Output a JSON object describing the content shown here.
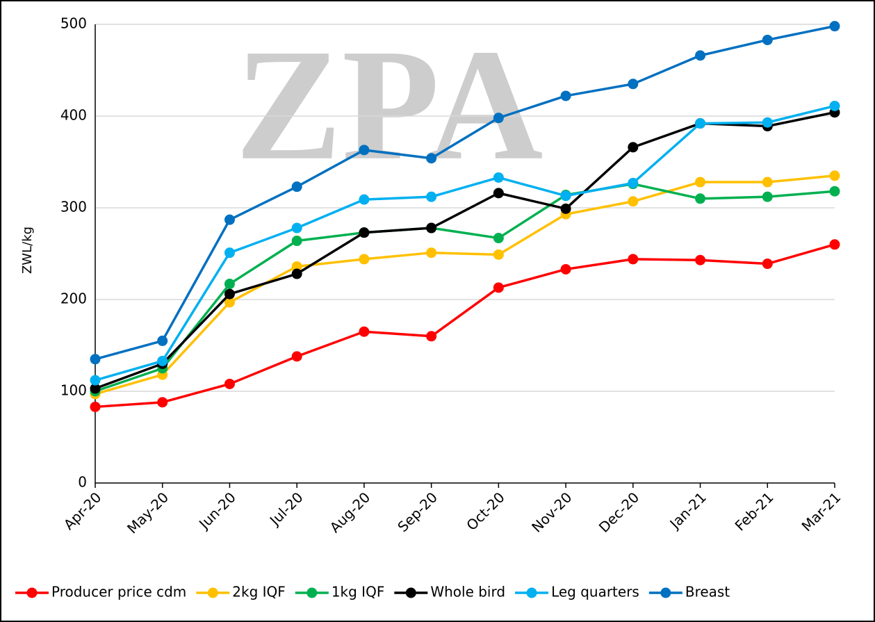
{
  "chart_data": {
    "type": "line",
    "watermark": "ZPA",
    "y_label": "ZWL/kg",
    "categories": [
      "Apr-20",
      "May-20",
      "Jun-20",
      "Jul-20",
      "Aug-20",
      "Sep-20",
      "Oct-20",
      "Nov-20",
      "Dec-20",
      "Jan-21",
      "Feb-21",
      "Mar-21"
    ],
    "series": [
      {
        "name": "Producer price cdm",
        "color": "#ff0000",
        "values": [
          83,
          88,
          108,
          138,
          165,
          160,
          213,
          233,
          244,
          243,
          239,
          260
        ]
      },
      {
        "name": "2kg IQF",
        "color": "#ffc000",
        "values": [
          97,
          118,
          197,
          236,
          244,
          251,
          249,
          293,
          307,
          328,
          328,
          335
        ]
      },
      {
        "name": "1kg IQF",
        "color": "#00b050",
        "values": [
          100,
          125,
          217,
          264,
          273,
          278,
          267,
          314,
          326,
          310,
          312,
          318
        ]
      },
      {
        "name": "Whole bird",
        "color": "#000000",
        "values": [
          103,
          130,
          206,
          228,
          273,
          278,
          316,
          299,
          366,
          392,
          389,
          404
        ]
      },
      {
        "name": "Leg quarters",
        "color": "#00b0f0",
        "values": [
          112,
          133,
          251,
          278,
          309,
          312,
          333,
          313,
          327,
          392,
          393,
          411
        ]
      },
      {
        "name": "Breast",
        "color": "#0070c0",
        "values": [
          135,
          155,
          287,
          323,
          363,
          354,
          398,
          422,
          435,
          466,
          483,
          498
        ]
      }
    ],
    "ylim": [
      0,
      500
    ],
    "yticks": [
      0,
      100,
      200,
      300,
      400,
      500
    ],
    "grid": true,
    "legend": "bottom"
  }
}
